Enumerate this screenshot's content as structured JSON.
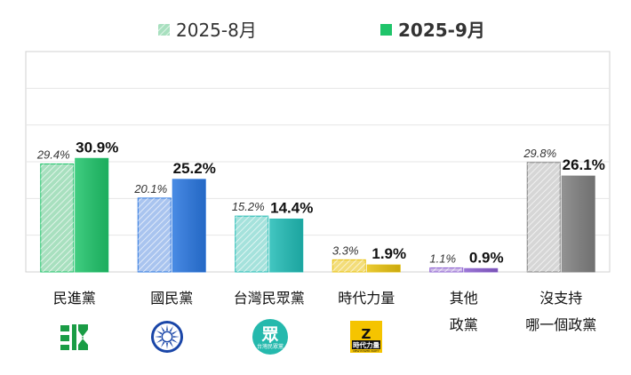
{
  "chart_data": {
    "type": "bar",
    "categories": [
      "民進黨",
      "國民黨",
      "台灣民眾黨",
      "時代力量",
      "其他\n政黨",
      "沒支持\n哪一個政黨"
    ],
    "category_lines": [
      [
        "民進黨"
      ],
      [
        "國民黨"
      ],
      [
        "台灣民眾黨"
      ],
      [
        "時代力量"
      ],
      [
        "其他",
        "政黨"
      ],
      [
        "沒支持",
        "哪一個政黨"
      ]
    ],
    "series": [
      {
        "name": "2025-8月",
        "values": [
          29.4,
          20.1,
          15.2,
          3.3,
          1.1,
          29.8
        ],
        "labels": [
          "29.4%",
          "20.1%",
          "15.2%",
          "3.3%",
          "1.1%",
          "29.8%"
        ]
      },
      {
        "name": "2025-9月",
        "values": [
          30.9,
          25.2,
          14.4,
          1.9,
          0.9,
          26.1
        ],
        "labels": [
          "30.9%",
          "25.2%",
          "14.4%",
          "1.9%",
          "0.9%",
          "26.1%"
        ]
      }
    ],
    "ylim": [
      0,
      60
    ],
    "grid": true,
    "legend": "top-center",
    "colors": {
      "series1": [
        "#a8e0bf",
        "#a9c4ef",
        "#a5e2dc",
        "#f3dd7a",
        "#cdb9e8",
        "#d6d6d6"
      ],
      "series2": [
        "#1fc46a",
        "#2a77e0",
        "#21bcb6",
        "#e8c20f",
        "#8b5fd0",
        "#808080"
      ],
      "legend1": "#a8e0bf",
      "legend2": "#1fc46a"
    },
    "logo_texts": [
      "眾",
      "台灣民眾黨",
      "時代力量",
      "NEW POWER PARTY"
    ]
  }
}
